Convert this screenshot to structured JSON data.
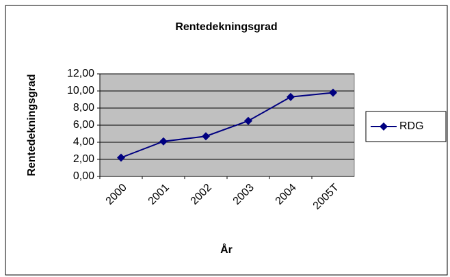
{
  "chart_data": {
    "type": "line",
    "title": "Rentedekningsgrad",
    "x_label": "År",
    "y_label": "Rentedekningsgrad",
    "categories": [
      "2000",
      "2001",
      "2002",
      "2003",
      "2004",
      "2005T"
    ],
    "series": [
      {
        "name": "RDG",
        "color": "#000080",
        "values": [
          2.2,
          4.1,
          4.7,
          6.5,
          9.3,
          9.8
        ]
      }
    ],
    "ylim": [
      0,
      12
    ],
    "yticks": [
      {
        "value": 0,
        "label": "0,00"
      },
      {
        "value": 2,
        "label": "2,00"
      },
      {
        "value": 4,
        "label": "4,00"
      },
      {
        "value": 6,
        "label": "6,00"
      },
      {
        "value": 8,
        "label": "8,00"
      },
      {
        "value": 10,
        "label": "10,00"
      },
      {
        "value": 12,
        "label": "12,00"
      }
    ],
    "grid": true,
    "plot_background": "#c0c0c0",
    "legend": "right"
  }
}
